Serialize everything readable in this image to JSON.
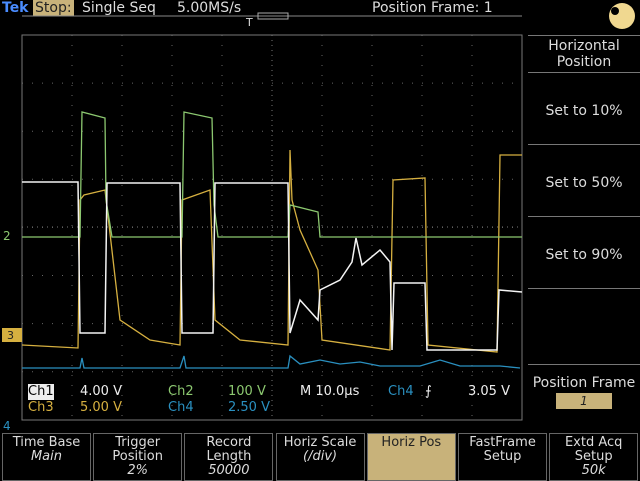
{
  "header": {
    "brand": "Tek",
    "state": "Stop:",
    "mode": "Single Seq",
    "sample_rate": "5.00MS/s",
    "position_frame": "Position Frame: 1"
  },
  "markers": {
    "trigger": "T",
    "ch2": "2",
    "ch3": "3",
    "ch4": "4"
  },
  "readouts": {
    "ch1": {
      "label": "Ch1",
      "scale": "4.00 V"
    },
    "ch2": {
      "label": "Ch2",
      "scale": "100 V"
    },
    "ch3": {
      "label": "Ch3",
      "scale": "5.00 V"
    },
    "ch4": {
      "label": "Ch4",
      "scale": "2.50 V"
    },
    "timebase": "M 10.0µs",
    "trigger_source": "Ch4",
    "trigger_level": "3.05 V"
  },
  "side_menu": {
    "title": "Horizontal Position",
    "items": [
      "Set to 10%",
      "Set to 50%",
      "Set to 90%"
    ],
    "frame_label": "Position Frame",
    "frame_value": "1"
  },
  "bottom_menu": [
    {
      "label": "Time Base",
      "value": "Main"
    },
    {
      "label": "Trigger Position",
      "value": "2%"
    },
    {
      "label": "Record Length",
      "value": "50000"
    },
    {
      "label": "Horiz Scale",
      "value": "(/div)"
    },
    {
      "label": "Horiz Pos",
      "value": null
    },
    {
      "label": "FastFrame Setup",
      "value": null
    },
    {
      "label": "Extd Acq Setup",
      "value": "50k"
    }
  ]
}
